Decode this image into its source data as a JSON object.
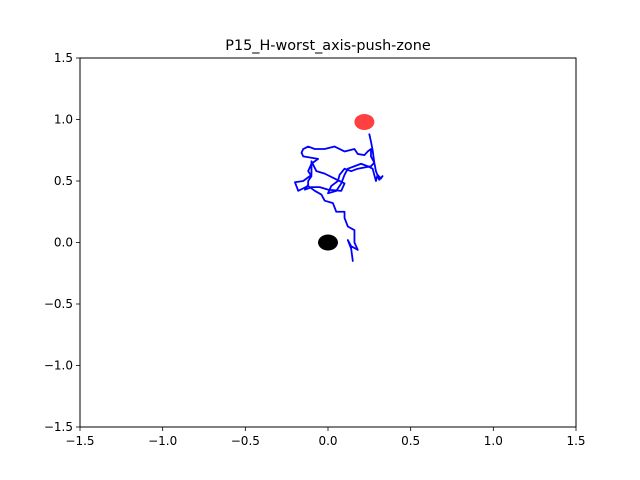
{
  "chart_data": {
    "type": "line",
    "title": "P15_H-worst_axis-push-zone",
    "xlabel": "",
    "ylabel": "",
    "xlim": [
      -1.5,
      1.5
    ],
    "ylim": [
      -1.5,
      1.5
    ],
    "x_ticks": [
      -1.5,
      -1.0,
      -0.5,
      0.0,
      0.5,
      1.0,
      1.5
    ],
    "y_ticks": [
      -1.5,
      -1.0,
      -0.5,
      0.0,
      0.5,
      1.0,
      1.5
    ],
    "x_tick_labels": [
      "−1.5",
      "−1.0",
      "−0.5",
      "0.0",
      "0.5",
      "1.0",
      "1.5"
    ],
    "y_tick_labels": [
      "−1.5",
      "−1.0",
      "−0.5",
      "0.0",
      "0.5",
      "1.0",
      "1.5"
    ],
    "grid": false,
    "series": [
      {
        "color": "#0000ff",
        "points": [
          [
            0.15,
            -0.15
          ],
          [
            0.14,
            -0.05
          ],
          [
            0.12,
            0.02
          ],
          [
            0.14,
            -0.03
          ],
          [
            0.18,
            -0.06
          ],
          [
            0.16,
            0.0
          ],
          [
            0.16,
            0.1
          ],
          [
            0.12,
            0.13
          ],
          [
            0.1,
            0.2
          ],
          [
            0.1,
            0.25
          ],
          [
            0.05,
            0.25
          ],
          [
            0.03,
            0.32
          ],
          [
            -0.02,
            0.34
          ],
          [
            -0.04,
            0.39
          ],
          [
            -0.08,
            0.42
          ],
          [
            -0.12,
            0.46
          ],
          [
            -0.15,
            0.44
          ],
          [
            -0.18,
            0.42
          ],
          [
            -0.2,
            0.49
          ],
          [
            -0.15,
            0.5
          ],
          [
            -0.1,
            0.55
          ],
          [
            -0.1,
            0.6
          ],
          [
            -0.1,
            0.66
          ],
          [
            -0.07,
            0.58
          ],
          [
            -0.02,
            0.56
          ],
          [
            0.04,
            0.52
          ],
          [
            0.1,
            0.48
          ],
          [
            0.08,
            0.42
          ],
          [
            0.0,
            0.43
          ],
          [
            -0.05,
            0.45
          ],
          [
            -0.1,
            0.45
          ],
          [
            -0.14,
            0.43
          ],
          [
            -0.12,
            0.47
          ],
          [
            -0.12,
            0.5
          ],
          [
            -0.1,
            0.54
          ],
          [
            -0.12,
            0.58
          ],
          [
            -0.1,
            0.64
          ],
          [
            -0.06,
            0.68
          ],
          [
            -0.15,
            0.7
          ],
          [
            -0.16,
            0.73
          ],
          [
            -0.15,
            0.76
          ],
          [
            -0.12,
            0.78
          ],
          [
            -0.08,
            0.76
          ],
          [
            -0.02,
            0.76
          ],
          [
            0.04,
            0.78
          ],
          [
            0.1,
            0.74
          ],
          [
            0.16,
            0.76
          ],
          [
            0.18,
            0.72
          ],
          [
            0.22,
            0.71
          ],
          [
            0.24,
            0.74
          ],
          [
            0.26,
            0.76
          ],
          [
            0.26,
            0.7
          ],
          [
            0.28,
            0.65
          ],
          [
            0.26,
            0.62
          ],
          [
            0.22,
            0.61
          ],
          [
            0.18,
            0.6
          ],
          [
            0.14,
            0.58
          ],
          [
            0.1,
            0.6
          ],
          [
            0.07,
            0.55
          ],
          [
            0.06,
            0.5
          ],
          [
            0.02,
            0.46
          ],
          [
            0.0,
            0.4
          ],
          [
            0.05,
            0.42
          ],
          [
            0.08,
            0.48
          ],
          [
            0.1,
            0.55
          ],
          [
            0.12,
            0.6
          ],
          [
            0.16,
            0.62
          ],
          [
            0.2,
            0.64
          ],
          [
            0.24,
            0.62
          ],
          [
            0.27,
            0.6
          ],
          [
            0.28,
            0.55
          ],
          [
            0.29,
            0.5
          ],
          [
            0.3,
            0.55
          ],
          [
            0.32,
            0.52
          ],
          [
            0.33,
            0.54
          ],
          [
            0.31,
            0.51
          ],
          [
            0.29,
            0.58
          ],
          [
            0.28,
            0.65
          ],
          [
            0.27,
            0.75
          ],
          [
            0.26,
            0.82
          ],
          [
            0.25,
            0.88
          ]
        ]
      }
    ],
    "markers": [
      {
        "x": 0.0,
        "y": 0.0,
        "color": "#000000",
        "alpha": 1.0
      },
      {
        "x": 0.22,
        "y": 0.98,
        "color": "#ff0000",
        "alpha": 0.75
      }
    ]
  }
}
